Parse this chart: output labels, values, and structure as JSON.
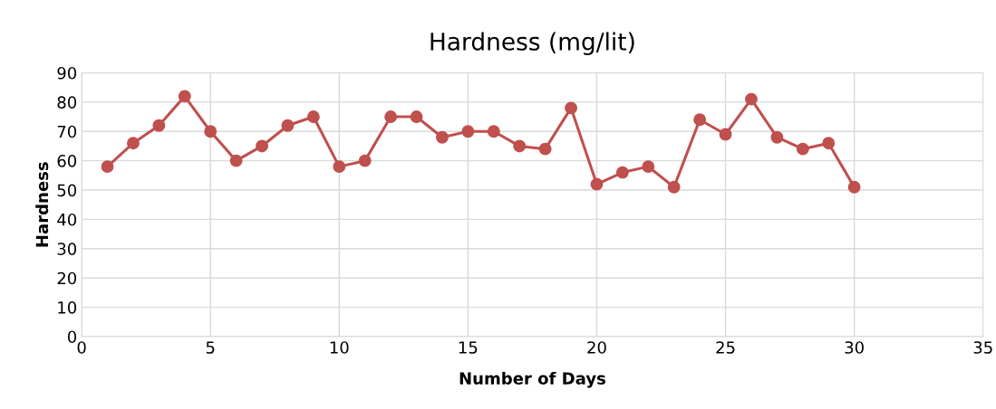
{
  "chart_data": {
    "type": "line",
    "title": "Hardness (mg/lit)",
    "xlabel": "Number of Days",
    "ylabel": "Hardness",
    "x": [
      1,
      2,
      3,
      4,
      5,
      6,
      7,
      8,
      9,
      10,
      11,
      12,
      13,
      14,
      15,
      16,
      17,
      18,
      19,
      20,
      21,
      22,
      23,
      24,
      25,
      26,
      27,
      28,
      29,
      30
    ],
    "series": [
      {
        "color": "#c0504d",
        "values": [
          58,
          66,
          72,
          82,
          70,
          60,
          65,
          72,
          75,
          58,
          60,
          75,
          75,
          68,
          70,
          70,
          65,
          64,
          78,
          52,
          56,
          58,
          51,
          74,
          69,
          81,
          68,
          64,
          66,
          51
        ]
      }
    ],
    "xlim": [
      0,
      35
    ],
    "xticks": [
      0,
      5,
      10,
      15,
      20,
      25,
      30,
      35
    ],
    "ylim": [
      0,
      90
    ],
    "yticks": [
      0,
      10,
      20,
      30,
      40,
      50,
      60,
      70,
      80,
      90
    ],
    "grid": true,
    "marker": "circle",
    "line_style": "solid"
  }
}
